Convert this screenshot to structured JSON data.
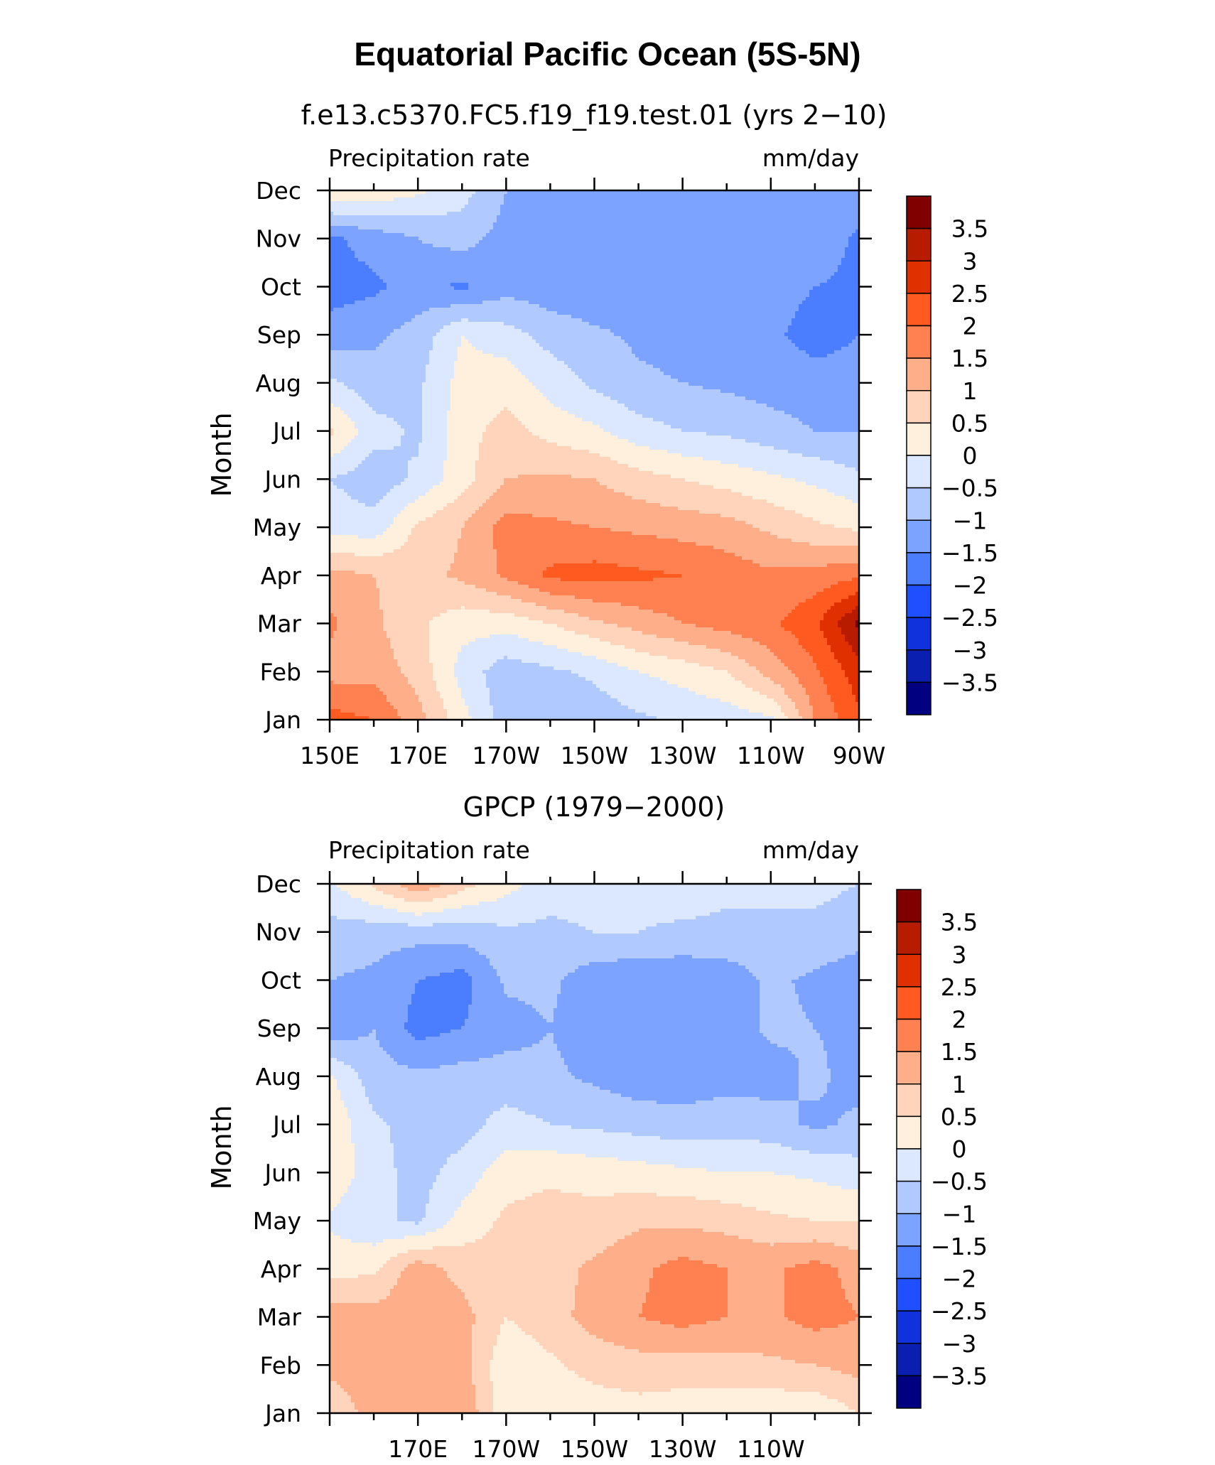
{
  "main_title": "Equatorial Pacific Ocean (5S-5N)",
  "colorbar": {
    "colors": [
      "#000080",
      "#0a1fb0",
      "#1032dc",
      "#1f4fff",
      "#4a7dff",
      "#7ba3ff",
      "#b0c9ff",
      "#dbe8ff",
      "#fff0de",
      "#ffd4bb",
      "#ffae8a",
      "#ff8050",
      "#ff5a20",
      "#e03000",
      "#b81c00",
      "#800000"
    ],
    "labels": [
      "3.5",
      "3",
      "2.5",
      "2",
      "1.5",
      "1",
      "0.5",
      "0",
      "−0.5",
      "−1",
      "−1.5",
      "−2",
      "−2.5",
      "−3",
      "−3.5"
    ]
  },
  "chart_data": [
    {
      "type": "heatmap",
      "title": "f.e13.c5370.FC5.f19_f19.test.01 (yrs 2−10)",
      "left_label": "Precipitation rate",
      "right_label": "mm/day",
      "ylabel": "Month",
      "xlabel": "",
      "x_tick_labels": [
        "150E",
        "170E",
        "170W",
        "150W",
        "130W",
        "110W",
        "90W"
      ],
      "y_tick_labels": [
        "Jan",
        "Feb",
        "Mar",
        "Apr",
        "May",
        "Jun",
        "Jul",
        "Aug",
        "Sep",
        "Oct",
        "Nov",
        "Dec"
      ],
      "x": [
        150,
        160,
        170,
        180,
        190,
        200,
        210,
        220,
        230,
        240,
        250,
        260,
        270
      ],
      "x_units": "degrees longitude east",
      "months": [
        "Jan",
        "Feb",
        "Mar",
        "Apr",
        "May",
        "Jun",
        "Jul",
        "Aug",
        "Sep",
        "Oct",
        "Nov",
        "Dec"
      ],
      "values": [
        [
          2.2,
          2.0,
          1.2,
          0.2,
          -0.8,
          -1.0,
          -0.8,
          -0.6,
          -0.4,
          -0.3,
          -0.1,
          1.5,
          2.4
        ],
        [
          1.3,
          1.3,
          0.8,
          -0.2,
          -0.8,
          -0.6,
          -0.4,
          0.0,
          0.2,
          0.5,
          1.2,
          1.9,
          2.8
        ],
        [
          1.6,
          1.1,
          0.6,
          0.2,
          0.2,
          0.5,
          0.9,
          1.2,
          1.5,
          1.7,
          1.9,
          2.4,
          3.6
        ],
        [
          1.2,
          1.0,
          0.8,
          1.1,
          1.6,
          2.1,
          2.2,
          2.1,
          2.0,
          1.8,
          1.6,
          1.7,
          1.9
        ],
        [
          -0.2,
          -0.3,
          0.6,
          1.0,
          1.7,
          1.6,
          1.5,
          1.4,
          1.3,
          1.2,
          0.9,
          0.6,
          0.4
        ],
        [
          -0.5,
          -0.8,
          -0.4,
          0.3,
          1.0,
          1.1,
          1.0,
          0.7,
          0.5,
          0.3,
          0.1,
          -0.1,
          -0.4
        ],
        [
          0.6,
          -0.3,
          -0.6,
          0.3,
          0.7,
          0.3,
          0.1,
          -0.3,
          -0.5,
          -0.6,
          -0.8,
          -1.0,
          -1.0
        ],
        [
          -0.4,
          -0.8,
          -0.6,
          0.2,
          0.3,
          -0.2,
          -0.6,
          -0.9,
          -1.0,
          -1.1,
          -1.2,
          -1.3,
          -1.3
        ],
        [
          -1.3,
          -1.1,
          -0.8,
          0.0,
          -0.3,
          -0.7,
          -0.9,
          -1.1,
          -1.2,
          -1.3,
          -1.4,
          -1.7,
          -1.5
        ],
        [
          -1.7,
          -1.6,
          -1.3,
          -1.6,
          -1.2,
          -1.3,
          -1.4,
          -1.3,
          -1.3,
          -1.3,
          -1.3,
          -1.5,
          -1.6
        ],
        [
          -1.6,
          -1.3,
          -1.0,
          -0.8,
          -1.2,
          -1.4,
          -1.3,
          -1.2,
          -1.1,
          -1.1,
          -1.1,
          -1.2,
          -1.6
        ],
        [
          0.5,
          0.4,
          0.1,
          -0.3,
          -1.0,
          -1.2,
          -1.2,
          -1.1,
          -1.0,
          -1.0,
          -1.0,
          -1.1,
          -1.2
        ]
      ],
      "levels": [
        -3.5,
        -3,
        -2.5,
        -2,
        -1.5,
        -1,
        -0.5,
        0,
        0.5,
        1,
        1.5,
        2,
        2.5,
        3,
        3.5
      ]
    },
    {
      "type": "heatmap",
      "title": "GPCP (1979−2000)",
      "left_label": "Precipitation rate",
      "right_label": "mm/day",
      "ylabel": "Month",
      "xlabel": "",
      "x_tick_labels": [
        "170E",
        "170W",
        "150W",
        "130W",
        "110W"
      ],
      "y_tick_labels": [
        "Jan",
        "Feb",
        "Mar",
        "Apr",
        "May",
        "Jun",
        "Jul",
        "Aug",
        "Sep",
        "Oct",
        "Nov",
        "Dec"
      ],
      "x": [
        150,
        160,
        170,
        180,
        190,
        200,
        210,
        220,
        230,
        240,
        250,
        260,
        270
      ],
      "x_units": "degrees longitude east",
      "months": [
        "Jan",
        "Feb",
        "Mar",
        "Apr",
        "May",
        "Jun",
        "Jul",
        "Aug",
        "Sep",
        "Oct",
        "Nov",
        "Dec"
      ],
      "values": [
        [
          0.5,
          1.3,
          1.4,
          1.5,
          0.1,
          0.1,
          0.2,
          0.3,
          0.2,
          0.2,
          0.1,
          0.1,
          0.5
        ],
        [
          1.2,
          1.3,
          1.3,
          1.2,
          0.1,
          0.4,
          0.7,
          0.8,
          0.8,
          0.8,
          0.9,
          1.0,
          1.2
        ],
        [
          1.3,
          1.2,
          1.4,
          1.2,
          0.5,
          0.8,
          1.2,
          1.5,
          1.7,
          1.5,
          1.4,
          1.7,
          1.5
        ],
        [
          0.3,
          0.4,
          1.3,
          0.8,
          0.6,
          0.8,
          1.1,
          1.4,
          1.7,
          1.5,
          1.4,
          1.7,
          1.3
        ],
        [
          -0.1,
          -0.4,
          -0.6,
          0.2,
          0.6,
          0.7,
          0.7,
          0.9,
          0.9,
          0.8,
          0.6,
          0.5,
          0.5
        ],
        [
          0.4,
          -0.3,
          -0.7,
          -0.3,
          0.3,
          0.4,
          0.3,
          0.2,
          0.1,
          0.0,
          0.0,
          -0.1,
          -0.3
        ],
        [
          0.4,
          -0.4,
          -0.7,
          -0.7,
          -0.3,
          -0.5,
          -0.6,
          -0.7,
          -0.8,
          -0.7,
          -0.8,
          -1.1,
          -0.9
        ],
        [
          0.1,
          -0.8,
          -0.9,
          -0.8,
          -0.8,
          -0.9,
          -1.1,
          -1.3,
          -1.3,
          -1.2,
          -1.2,
          -0.9,
          -1.2
        ],
        [
          -1.4,
          -1.0,
          -1.7,
          -1.5,
          -1.2,
          -1.0,
          -1.3,
          -1.3,
          -1.3,
          -1.3,
          -0.9,
          -1.0,
          -1.1
        ],
        [
          -1.0,
          -1.1,
          -1.5,
          -1.7,
          -0.9,
          -0.9,
          -1.3,
          -1.4,
          -1.4,
          -1.3,
          -0.9,
          -1.1,
          -1.4
        ],
        [
          -0.7,
          -0.8,
          -0.8,
          -0.8,
          -0.6,
          -0.6,
          -0.5,
          -0.5,
          -0.6,
          -0.6,
          -0.6,
          -0.6,
          -0.7
        ],
        [
          -0.1,
          0.6,
          1.4,
          0.7,
          0.2,
          -0.3,
          -0.3,
          -0.3,
          -0.2,
          -0.4,
          -0.4,
          -0.4,
          -0.5
        ]
      ],
      "levels": [
        -3.5,
        -3,
        -2.5,
        -2,
        -1.5,
        -1,
        -0.5,
        0,
        0.5,
        1,
        1.5,
        2,
        2.5,
        3,
        3.5
      ]
    }
  ]
}
